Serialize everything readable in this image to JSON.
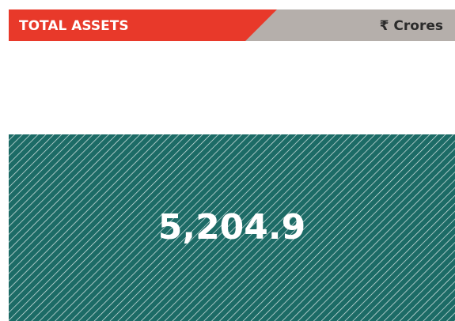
{
  "chart_data": {
    "type": "bar",
    "title": "TOTAL ASSETS",
    "unit": "₹ Crores",
    "categories": [
      null
    ],
    "values": [
      5204.9
    ],
    "value_labels": [
      "5,204.9"
    ],
    "color": "#1c6b66"
  }
}
